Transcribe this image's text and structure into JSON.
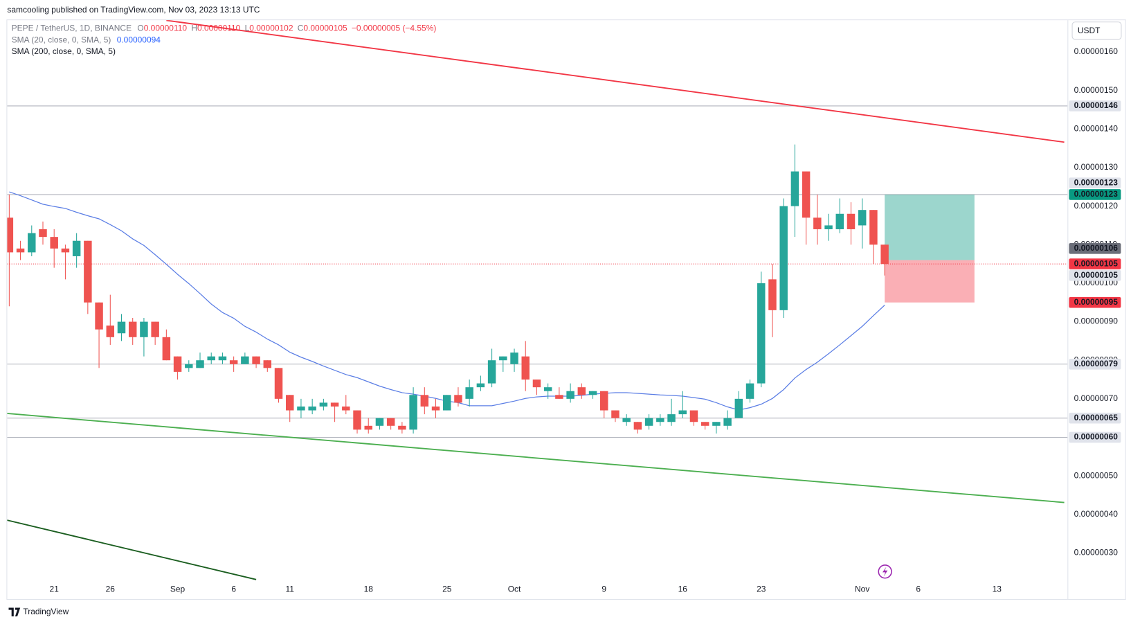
{
  "chart_data": {
    "type": "candlestick",
    "title": "samcooling published on TradingView.com, Nov 03, 2023 13:13 UTC",
    "legend": {
      "symbol": "PEPE / TetherUS, 1D, BINANCE",
      "ohlc": [
        {
          "key": "O",
          "label": "0.00000110"
        },
        {
          "key": "H",
          "label": "0.00000110"
        },
        {
          "key": "L",
          "label": "0.00000102"
        },
        {
          "key": "C",
          "label": "0.00000105"
        }
      ],
      "change": "−0.00000005 (−4.55%)"
    },
    "currency": "USDT",
    "up_color": "#26a69a",
    "down_color": "#ef5350",
    "xlim": [
      "2023-08-16T19:40",
      "2023-11-19T07:00"
    ],
    "ylim": [
      2.273e-07,
      1.6824e-06
    ],
    "xticks": [
      {
        "value": "2023-08-21",
        "label": "21"
      },
      {
        "value": "2023-08-26",
        "label": "26"
      },
      {
        "value": "2023-09-01",
        "label": "Sep"
      },
      {
        "value": "2023-09-06",
        "label": "6"
      },
      {
        "value": "2023-09-11",
        "label": "11"
      },
      {
        "value": "2023-09-18",
        "label": "18"
      },
      {
        "value": "2023-09-25",
        "label": "25"
      },
      {
        "value": "2023-10-01",
        "label": "Oct"
      },
      {
        "value": "2023-10-09",
        "label": "9"
      },
      {
        "value": "2023-10-16",
        "label": "16"
      },
      {
        "value": "2023-10-23",
        "label": "23"
      },
      {
        "value": "2023-11-01",
        "label": "Nov"
      },
      {
        "value": "2023-11-06",
        "label": "6"
      },
      {
        "value": "2023-11-13",
        "label": "13"
      }
    ],
    "yticks": [
      {
        "value": 1.6e-06,
        "label": "0.00000160"
      },
      {
        "value": 1.5e-06,
        "label": "0.00000150"
      },
      {
        "value": 1.4e-06,
        "label": "0.00000140"
      },
      {
        "value": 1.3e-06,
        "label": "0.00000130"
      },
      {
        "value": 1.2e-06,
        "label": "0.00000120"
      },
      {
        "value": 1.1e-06,
        "label": "0.00000110"
      },
      {
        "value": 1e-06,
        "label": "0.00000100"
      },
      {
        "value": 9e-07,
        "label": "0.00000090"
      },
      {
        "value": 8e-07,
        "label": "0.00000080"
      },
      {
        "value": 7e-07,
        "label": "0.00000070"
      },
      {
        "value": 6e-07,
        "label": "0.00000060"
      },
      {
        "value": 5e-07,
        "label": "0.00000050"
      },
      {
        "value": 4e-07,
        "label": "0.00000040"
      },
      {
        "value": 3e-07,
        "label": "0.00000030"
      }
    ],
    "x": [
      "2023-08-17",
      "2023-08-18",
      "2023-08-19",
      "2023-08-20",
      "2023-08-21",
      "2023-08-22",
      "2023-08-23",
      "2023-08-24",
      "2023-08-25",
      "2023-08-26",
      "2023-08-27",
      "2023-08-28",
      "2023-08-29",
      "2023-08-30",
      "2023-08-31",
      "2023-09-01",
      "2023-09-02",
      "2023-09-03",
      "2023-09-04",
      "2023-09-05",
      "2023-09-06",
      "2023-09-07",
      "2023-09-08",
      "2023-09-09",
      "2023-09-10",
      "2023-09-11",
      "2023-09-12",
      "2023-09-13",
      "2023-09-14",
      "2023-09-15",
      "2023-09-16",
      "2023-09-17",
      "2023-09-18",
      "2023-09-19",
      "2023-09-20",
      "2023-09-21",
      "2023-09-22",
      "2023-09-23",
      "2023-09-24",
      "2023-09-25",
      "2023-09-26",
      "2023-09-27",
      "2023-09-28",
      "2023-09-29",
      "2023-09-30",
      "2023-10-01",
      "2023-10-02",
      "2023-10-03",
      "2023-10-04",
      "2023-10-05",
      "2023-10-06",
      "2023-10-07",
      "2023-10-08",
      "2023-10-09",
      "2023-10-10",
      "2023-10-11",
      "2023-10-12",
      "2023-10-13",
      "2023-10-14",
      "2023-10-15",
      "2023-10-16",
      "2023-10-17",
      "2023-10-18",
      "2023-10-19",
      "2023-10-20",
      "2023-10-21",
      "2023-10-22",
      "2023-10-23",
      "2023-10-24",
      "2023-10-25",
      "2023-10-26",
      "2023-10-27",
      "2023-10-28",
      "2023-10-29",
      "2023-10-30",
      "2023-10-31",
      "2023-11-01",
      "2023-11-02",
      "2023-11-03"
    ],
    "open": [
      1.17e-06,
      1.09e-06,
      1.08e-06,
      1.14e-06,
      1.12e-06,
      1.09e-06,
      1.07e-06,
      1.11e-06,
      9.5e-07,
      8.9e-07,
      8.7e-07,
      9e-07,
      8.6e-07,
      9e-07,
      8.6e-07,
      8.1e-07,
      7.8e-07,
      7.8e-07,
      8e-07,
      8e-07,
      8e-07,
      7.9e-07,
      8.1e-07,
      8e-07,
      7.8e-07,
      7.1e-07,
      6.7e-07,
      6.7e-07,
      6.8e-07,
      6.9e-07,
      6.8e-07,
      6.7e-07,
      6.3e-07,
      6.3e-07,
      6.5e-07,
      6.3e-07,
      6.2e-07,
      7.1e-07,
      6.8e-07,
      6.7e-07,
      7.1e-07,
      7e-07,
      7.3e-07,
      7.4e-07,
      8e-07,
      7.9e-07,
      8.1e-07,
      7.5e-07,
      7.2e-07,
      7.1e-07,
      7e-07,
      7.3e-07,
      7.1e-07,
      7.2e-07,
      6.7e-07,
      6.4e-07,
      6.4e-07,
      6.3e-07,
      6.4e-07,
      6.4e-07,
      6.6e-07,
      6.7e-07,
      6.4e-07,
      6.3e-07,
      6.3e-07,
      6.5e-07,
      7e-07,
      7.4e-07,
      1.01e-06,
      9.3e-07,
      1.2e-06,
      1.29e-06,
      1.17e-06,
      1.14e-06,
      1.14e-06,
      1.18e-06,
      1.15e-06,
      1.19e-06,
      1.1e-06
    ],
    "high": [
      1.23e-06,
      1.11e-06,
      1.15e-06,
      1.16e-06,
      1.14e-06,
      1.1e-06,
      1.13e-06,
      1.11e-06,
      9.5e-07,
      9.7e-07,
      9.2e-07,
      9.1e-07,
      9.1e-07,
      9e-07,
      8.8e-07,
      8.1e-07,
      8e-07,
      8.2e-07,
      8.2e-07,
      8.2e-07,
      8.1e-07,
      8.2e-07,
      8.1e-07,
      8e-07,
      7.8e-07,
      7.1e-07,
      7e-07,
      7e-07,
      7e-07,
      6.9e-07,
      7.1e-07,
      6.7e-07,
      6.5e-07,
      6.5e-07,
      6.5e-07,
      6.4e-07,
      7.3e-07,
      7.3e-07,
      7e-07,
      7.1e-07,
      7.3e-07,
      7.5e-07,
      7.6e-07,
      8.3e-07,
      8.1e-07,
      8.3e-07,
      8.5e-07,
      7.5e-07,
      7.4e-07,
      7.3e-07,
      7.4e-07,
      7.4e-07,
      7.2e-07,
      7.2e-07,
      6.7e-07,
      6.6e-07,
      6.4e-07,
      6.6e-07,
      6.6e-07,
      7e-07,
      7.2e-07,
      6.7e-07,
      6.4e-07,
      6.4e-07,
      6.7e-07,
      7.2e-07,
      7.5e-07,
      1.03e-06,
      1.05e-06,
      1.22e-06,
      1.36e-06,
      1.29e-06,
      1.23e-06,
      1.18e-06,
      1.22e-06,
      1.21e-06,
      1.22e-06,
      1.19e-06,
      1.1e-06
    ],
    "low": [
      9.4e-07,
      1.06e-06,
      1.07e-06,
      1.1e-06,
      1.04e-06,
      1.01e-06,
      1.04e-06,
      9.2e-07,
      7.8e-07,
      8.4e-07,
      8.5e-07,
      8.4e-07,
      8.1e-07,
      8.4e-07,
      8e-07,
      7.5e-07,
      7.7e-07,
      7.8e-07,
      7.9e-07,
      7.9e-07,
      7.7e-07,
      7.9e-07,
      7.8e-07,
      7.7e-07,
      6.9e-07,
      6.4e-07,
      6.5e-07,
      6.6e-07,
      6.7e-07,
      6.4e-07,
      6.6e-07,
      6.1e-07,
      6.1e-07,
      6.2e-07,
      6.2e-07,
      6.1e-07,
      6.1e-07,
      6.6e-07,
      6.5e-07,
      6.7e-07,
      6.8e-07,
      6.8e-07,
      7.2e-07,
      7.3e-07,
      7.7e-07,
      7.7e-07,
      7.2e-07,
      7.1e-07,
      7e-07,
      7e-07,
      6.9e-07,
      7e-07,
      7e-07,
      6.5e-07,
      6.4e-07,
      6.3e-07,
      6.1e-07,
      6.2e-07,
      6.3e-07,
      6.3e-07,
      6.5e-07,
      6.3e-07,
      6.2e-07,
      6.1e-07,
      6.2e-07,
      6.5e-07,
      6.9e-07,
      7.3e-07,
      8.6e-07,
      9.1e-07,
      1.12e-06,
      1.1e-06,
      1.1e-06,
      1.11e-06,
      1.13e-06,
      1.1e-06,
      1.09e-06,
      1.05e-06,
      1.02e-06
    ],
    "close": [
      1.08e-06,
      1.08e-06,
      1.13e-06,
      1.12e-06,
      1.09e-06,
      1.08e-06,
      1.11e-06,
      9.5e-07,
      8.8e-07,
      8.6e-07,
      9e-07,
      8.6e-07,
      9e-07,
      8.6e-07,
      8e-07,
      7.7e-07,
      7.9e-07,
      8e-07,
      8.1e-07,
      8.1e-07,
      7.9e-07,
      8.1e-07,
      7.9e-07,
      7.8e-07,
      7e-07,
      6.7e-07,
      6.8e-07,
      6.8e-07,
      6.9e-07,
      6.8e-07,
      6.7e-07,
      6.2e-07,
      6.2e-07,
      6.5e-07,
      6.3e-07,
      6.2e-07,
      7.1e-07,
      6.8e-07,
      6.7e-07,
      7.1e-07,
      6.9e-07,
      7.3e-07,
      7.4e-07,
      8e-07,
      8.1e-07,
      8.2e-07,
      7.5e-07,
      7.3e-07,
      7.3e-07,
      7e-07,
      7.2e-07,
      7.1e-07,
      7.2e-07,
      6.7e-07,
      6.5e-07,
      6.5e-07,
      6.2e-07,
      6.5e-07,
      6.5e-07,
      6.6e-07,
      6.7e-07,
      6.4e-07,
      6.3e-07,
      6.4e-07,
      6.5e-07,
      7e-07,
      7.4e-07,
      1e-06,
      9.3e-07,
      1.2e-06,
      1.29e-06,
      1.17e-06,
      1.14e-06,
      1.15e-06,
      1.18e-06,
      1.14e-06,
      1.19e-06,
      1.1e-06,
      1.05e-06
    ],
    "overlays": [
      {
        "name": "SMA (20, close, 0, SMA, 5)",
        "value_label": "0.00000094",
        "color": "#5b7ee5",
        "values": [
          1.237e-06,
          1.227e-06,
          1.216e-06,
          1.205e-06,
          1.199e-06,
          1.194e-06,
          1.184e-06,
          1.175e-06,
          1.167e-06,
          1.152e-06,
          1.136e-06,
          1.115e-06,
          1.098e-06,
          1.074e-06,
          1.049e-06,
          1.023e-06,
          9.99e-07,
          9.73e-07,
          9.46e-07,
          9.24e-07,
          9.09e-07,
          8.88e-07,
          8.73e-07,
          8.55e-07,
          8.4e-07,
          8.21e-07,
          8.08e-07,
          7.97e-07,
          7.85e-07,
          7.74e-07,
          7.63e-07,
          7.55e-07,
          7.44e-07,
          7.33e-07,
          7.24e-07,
          7.16e-07,
          7.12e-07,
          7.07e-07,
          7.01e-07,
          6.94e-07,
          6.9e-07,
          6.82e-07,
          6.82e-07,
          6.82e-07,
          6.88e-07,
          6.94e-07,
          7.01e-07,
          7.05e-07,
          7.07e-07,
          7.07e-07,
          7.07e-07,
          7.09e-07,
          7.12e-07,
          7.14e-07,
          7.16e-07,
          7.16e-07,
          7.14e-07,
          7.12e-07,
          7.1e-07,
          7.09e-07,
          7.07e-07,
          7.03e-07,
          6.99e-07,
          6.9e-07,
          6.79e-07,
          6.71e-07,
          6.77e-07,
          6.86e-07,
          7.01e-07,
          7.24e-07,
          7.54e-07,
          7.76e-07,
          7.95e-07,
          8.17e-07,
          8.4e-07,
          8.64e-07,
          8.88e-07,
          9.16e-07,
          9.43e-07
        ]
      },
      {
        "name": "SMA (200, close, 0, SMA, 5)"
      }
    ],
    "trendlines": [
      {
        "color": "#f23645",
        "x": [
          "2023-08-31",
          "2023-11-19"
        ],
        "values": [
          1.682e-06,
          1.366e-06
        ]
      },
      {
        "color": "#4caf50",
        "x": [
          "2023-08-16T19:40",
          "2023-11-19"
        ],
        "values": [
          6.62e-07,
          4.31e-07
        ]
      },
      {
        "color": "#1b5e20",
        "x": [
          "2023-08-16T19:40",
          "2023-09-08"
        ],
        "values": [
          3.85e-07,
          2.31e-07
        ]
      }
    ],
    "last_price": {
      "value": 1.05e-06,
      "label": "0.00000105",
      "color": "#f23645"
    },
    "position": {
      "start": "2023-11-03",
      "end": "2023-11-11",
      "target": {
        "value": 1.23e-06,
        "label": "0.00000123",
        "color": "#089981"
      },
      "entry": {
        "value": 1.06e-06,
        "label": "0.00000106",
        "color": "#6a6d78"
      },
      "stop": {
        "value": 9.5e-07,
        "label": "0.00000095",
        "color": "#f23645"
      }
    },
    "levels": [
      {
        "value": 1.46e-06,
        "label": "0.00000146",
        "line": true
      },
      {
        "value": 1.23e-06,
        "label": "0.00000123",
        "line": true
      },
      {
        "value": 1.05e-06,
        "label": "0.00000105",
        "line": false
      },
      {
        "value": 7.9e-07,
        "label": "0.00000079",
        "line": true
      },
      {
        "value": 6.5e-07,
        "label": "0.00000065",
        "line": true
      },
      {
        "value": 6e-07,
        "label": "0.00000060",
        "line": true
      }
    ]
  },
  "brand": "TradingView"
}
